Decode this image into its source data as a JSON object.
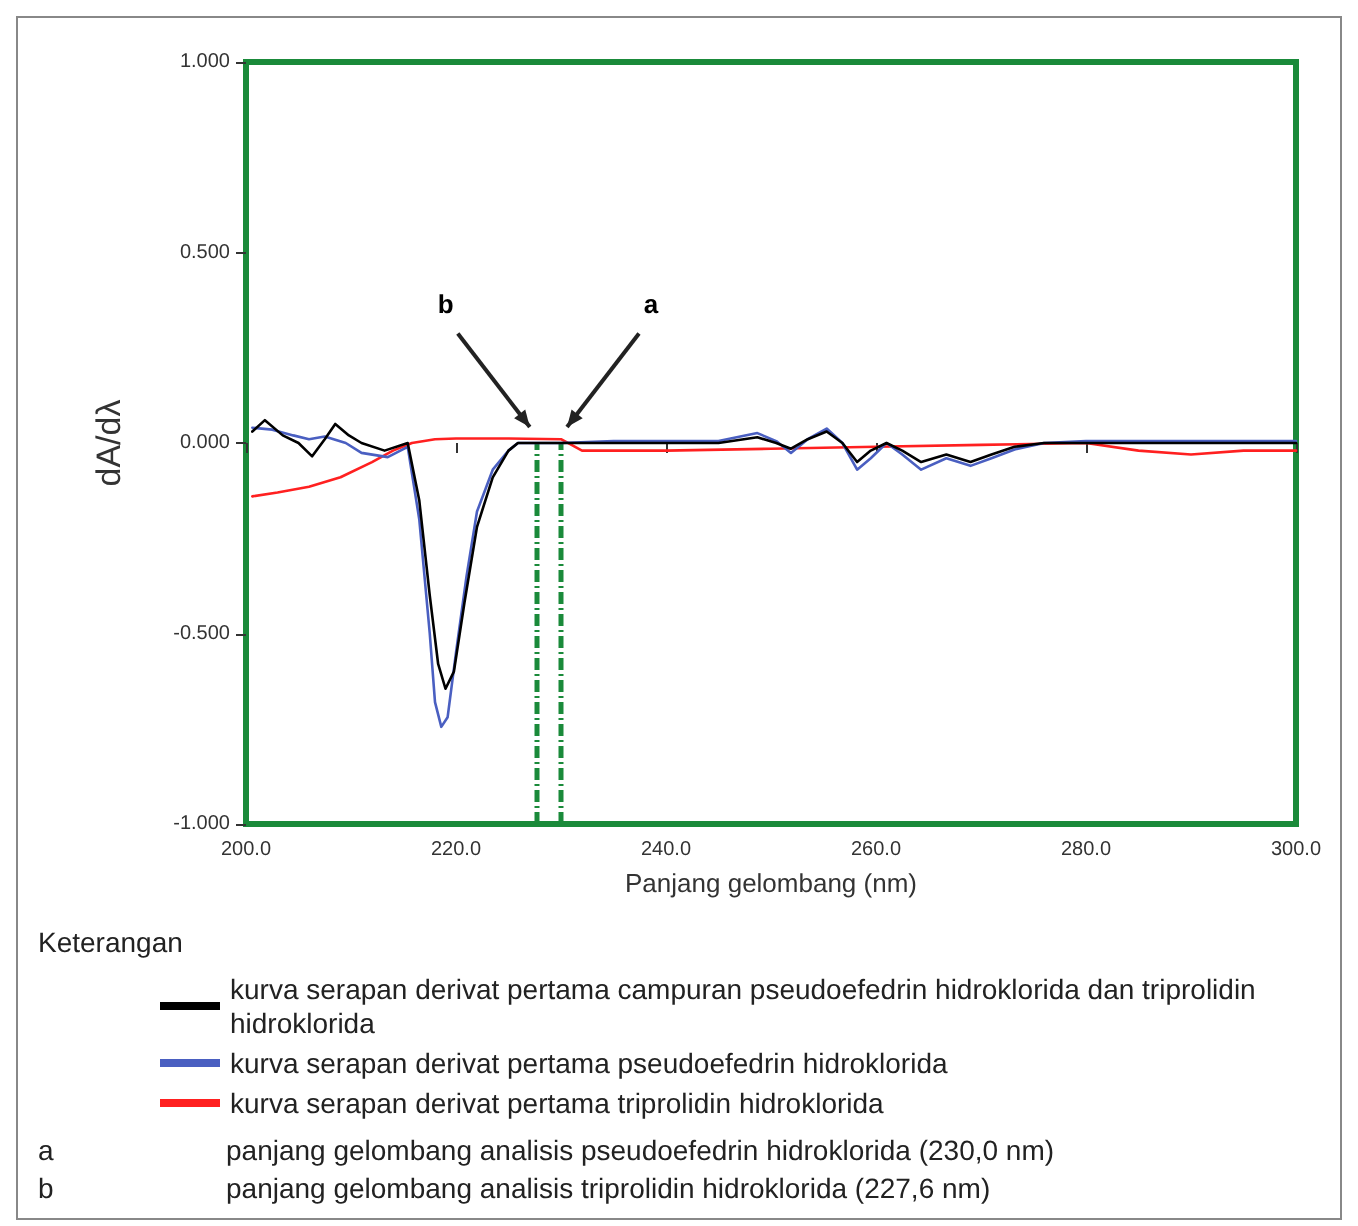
{
  "chart_data": {
    "type": "line",
    "xlabel": "Panjang gelombang (nm)",
    "ylabel": "dA/dλ",
    "legend_title": "Keterangan",
    "legend": "bottom",
    "grid": false,
    "marker": "none",
    "line_style": "solid",
    "xlim": [
      200,
      300
    ],
    "xticks": [
      {
        "value": 200,
        "label": "200.0"
      },
      {
        "value": 220,
        "label": "220.0"
      },
      {
        "value": 240,
        "label": "240.0"
      },
      {
        "value": 260,
        "label": "260.0"
      },
      {
        "value": 280,
        "label": "280.0"
      },
      {
        "value": 300,
        "label": "300.0"
      }
    ],
    "ylim": [
      -1,
      1
    ],
    "yticks": [
      {
        "value": -1,
        "label": "-1.000"
      },
      {
        "value": -0.5,
        "label": "-0.500"
      },
      {
        "value": 0,
        "label": "0.000"
      },
      {
        "value": 0.5,
        "label": "0.500"
      },
      {
        "value": 1,
        "label": "1.000"
      }
    ],
    "series": [
      {
        "name": "kurva serapan derivat pertama campuran pseudoefedrin hidroklorida dan triprolidin hidroklorida",
        "color": "#000000",
        "x": [
          200.6,
          201.8,
          203.5,
          205,
          206.3,
          207.5,
          208.5,
          209.8,
          211,
          213.2,
          215.4,
          216.5,
          217.5,
          218.3,
          219,
          219.8,
          220.8,
          222,
          223.5,
          225,
          225.9,
          227.6,
          230,
          235,
          240,
          245,
          248.7,
          250.5,
          251.9,
          253.5,
          255.3,
          256.8,
          258.2,
          259.5,
          261,
          262.5,
          264.3,
          266.7,
          269,
          271,
          273.2,
          276,
          280,
          290,
          300
        ],
        "values": [
          0.03,
          0.06,
          0.02,
          0.0,
          -0.035,
          0.01,
          0.05,
          0.02,
          0.0,
          -0.02,
          0.0,
          -0.15,
          -0.4,
          -0.58,
          -0.645,
          -0.6,
          -0.42,
          -0.22,
          -0.09,
          -0.02,
          0.0,
          0.0,
          0.0,
          0.0,
          0.0,
          0.0,
          0.015,
          0.0,
          -0.015,
          0.01,
          0.03,
          0.0,
          -0.05,
          -0.02,
          0.0,
          -0.02,
          -0.05,
          -0.03,
          -0.05,
          -0.03,
          -0.01,
          0.0,
          0.0,
          0.0,
          0.0
        ]
      },
      {
        "name": "kurva serapan derivat pertama pseudoefedrin hidroklorida",
        "color": "#4a5fc1",
        "x": [
          200.6,
          202.5,
          204.5,
          206,
          207.5,
          209.5,
          211,
          213.5,
          215.4,
          216.5,
          217.5,
          218,
          218.6,
          219.2,
          220,
          221,
          222,
          223.5,
          225,
          225.9,
          227.6,
          230,
          235,
          240,
          245,
          248.7,
          250.5,
          251.9,
          253.5,
          255.3,
          256.8,
          258.2,
          259.5,
          261,
          262.5,
          264.3,
          266.7,
          269,
          271,
          273.2,
          276,
          280,
          290,
          300
        ],
        "values": [
          0.04,
          0.035,
          0.02,
          0.01,
          0.017,
          0.0,
          -0.026,
          -0.037,
          -0.01,
          -0.2,
          -0.5,
          -0.68,
          -0.745,
          -0.72,
          -0.55,
          -0.35,
          -0.18,
          -0.07,
          -0.02,
          0.0,
          0.0,
          0.0,
          0.005,
          0.005,
          0.005,
          0.026,
          0.005,
          -0.026,
          0.01,
          0.038,
          0.0,
          -0.07,
          -0.04,
          0.0,
          -0.03,
          -0.07,
          -0.04,
          -0.06,
          -0.04,
          -0.017,
          0.0,
          0.005,
          0.005,
          0.005
        ]
      },
      {
        "name": "kurva serapan derivat pertama triprolidin hidroklorida",
        "color": "#ff2020",
        "x": [
          200.6,
          203,
          206,
          209,
          212,
          214,
          215.8,
          218,
          220,
          225,
          230,
          232,
          240,
          250,
          260,
          270,
          280,
          285,
          290,
          295,
          300
        ],
        "values": [
          -0.14,
          -0.13,
          -0.115,
          -0.09,
          -0.05,
          -0.02,
          0.0,
          0.01,
          0.012,
          0.012,
          0.01,
          -0.02,
          -0.02,
          -0.015,
          -0.01,
          -0.005,
          0.0,
          -0.02,
          -0.03,
          -0.02,
          -0.02
        ]
      }
    ],
    "ref_lines": [
      {
        "axis": "x",
        "value": 227.6,
        "label": "b",
        "color": "#1a8a3a",
        "line_style": "dashed"
      },
      {
        "axis": "x",
        "value": 230.0,
        "label": "a",
        "color": "#1a8a3a",
        "line_style": "dashed"
      }
    ],
    "annotations": [
      "a panjang gelombang analisis pseudoefedrin hidroklorida (230,0 nm)",
      "b panjang gelombang analisis triprolidin hidroklorida (227,6 nm)"
    ]
  }
}
